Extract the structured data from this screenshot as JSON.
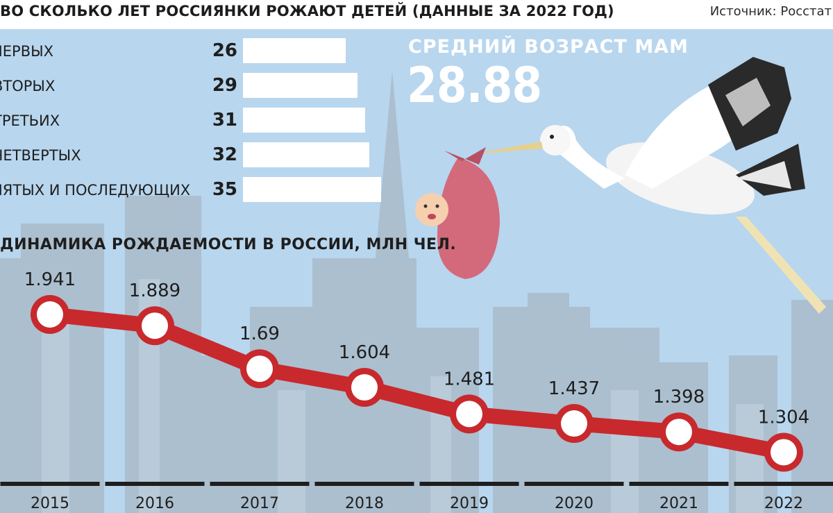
{
  "header": {
    "title": "ВО СКОЛЬКО ЛЕТ РОССИЯНКИ РОЖАЮТ ДЕТЕЙ (ДАННЫЕ ЗА 2022 ГОД)",
    "source": "Источник: Росстат"
  },
  "ages": {
    "items": [
      {
        "label": "ПЕРВЫХ",
        "value": 26
      },
      {
        "label": "ВТОРЫХ",
        "value": 29
      },
      {
        "label": "ТРЕТЬИХ",
        "value": 31
      },
      {
        "label": "ЧЕТВЕРТЫХ",
        "value": 32
      },
      {
        "label": "ПЯТЫХ И ПОСЛЕДУЮЩИХ",
        "value": 35
      }
    ]
  },
  "average": {
    "label": "СРЕДНИЙ ВОЗРАСТ МАМ",
    "value": "28.88"
  },
  "colors": {
    "background": "#b8d6ee",
    "line": "#c8292d",
    "bars": "#ffffff",
    "buildings": "#a7b8c7"
  },
  "chart_data": {
    "type": "line",
    "title": "ДИНАМИКА РОЖДАЕМОСТИ В РОССИИ,  МЛН ЧЕЛ.",
    "categories": [
      "2015",
      "2016",
      "2017",
      "2018",
      "2019",
      "2020",
      "2021",
      "2022"
    ],
    "values": [
      1.941,
      1.889,
      1.69,
      1.604,
      1.481,
      1.437,
      1.398,
      1.304
    ],
    "value_labels": [
      "1.941",
      "1.889",
      "1.69",
      "1.604",
      "1.481",
      "1.437",
      "1.398",
      "1.304"
    ],
    "grid": false,
    "legend": "none"
  }
}
